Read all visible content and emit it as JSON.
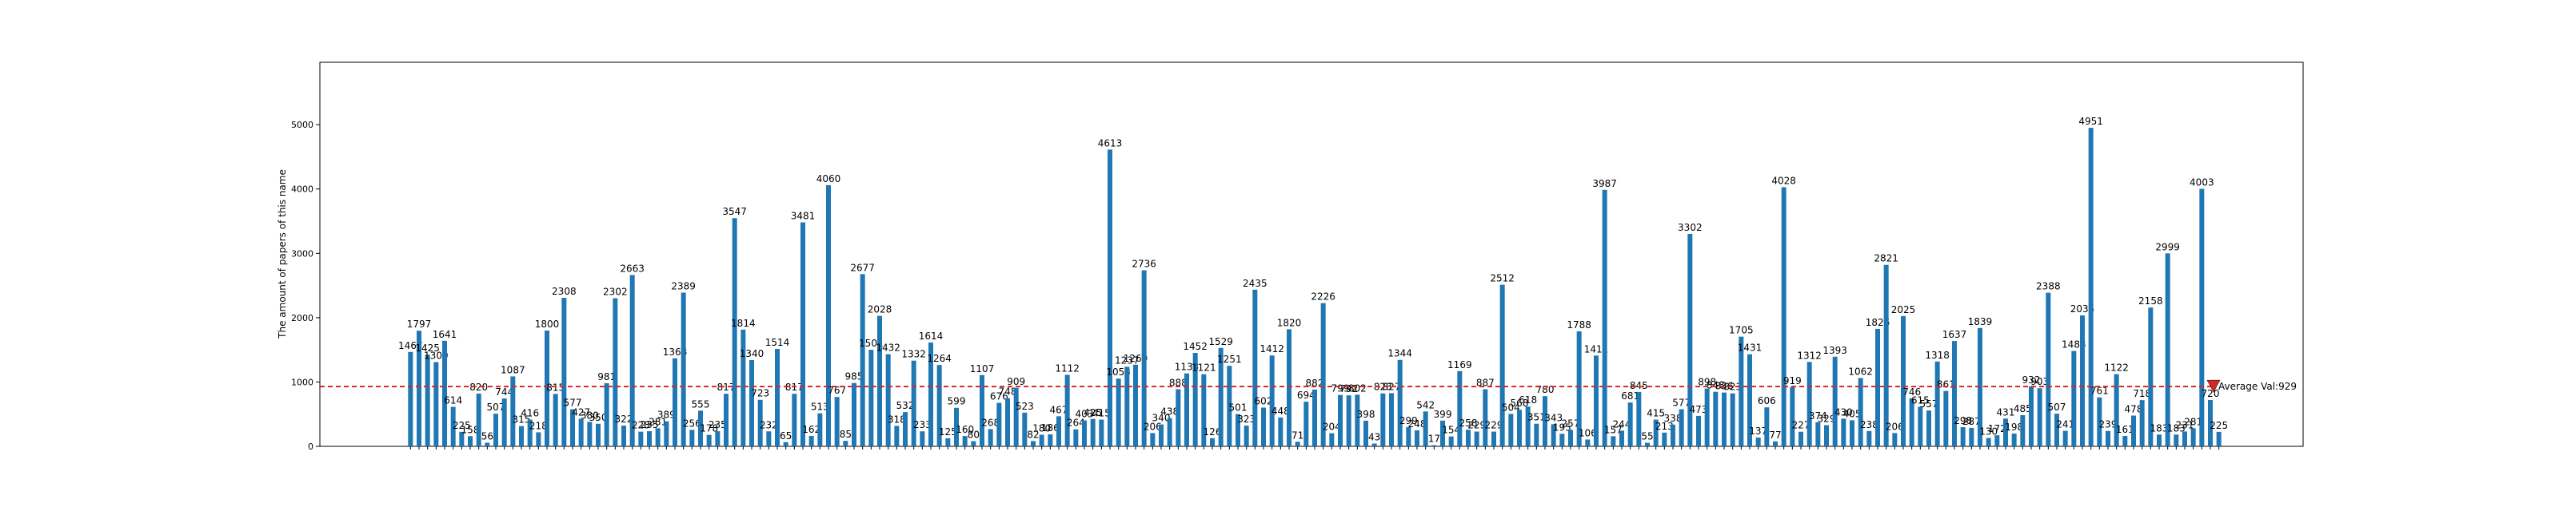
{
  "chart_data": {
    "type": "bar",
    "y_label": "The amount of papers of this name",
    "color": "#1f77b4",
    "ylim": [
      0,
      5970
    ],
    "yticks": [
      0,
      1000,
      2000,
      3000,
      4000,
      5000
    ],
    "annotation": {
      "text": "Average Val:929",
      "value": 929,
      "color": "#d62728"
    },
    "values": [
      1467,
      1797,
      1425,
      1309,
      1641,
      614,
      225,
      158,
      820,
      56,
      507,
      744,
      1087,
      315,
      416,
      218,
      1800,
      815,
      2308,
      577,
      427,
      380,
      350,
      981,
      2302,
      322,
      2663,
      228,
      235,
      281,
      389,
      1368,
      2389,
      256,
      555,
      178,
      235,
      817,
      3547,
      1814,
      1340,
      723,
      232,
      1514,
      65,
      817,
      3481,
      162,
      513,
      4060,
      767,
      85,
      985,
      2677,
      1501,
      2028,
      1432,
      318,
      532,
      1332,
      233,
      1614,
      1264,
      125,
      599,
      160,
      80,
      1107,
      268,
      676,
      748,
      909,
      523,
      82,
      180,
      186,
      467,
      1112,
      264,
      403,
      425,
      415,
      4613,
      1053,
      1237,
      1269,
      2736,
      206,
      340,
      438,
      888,
      1133,
      1452,
      1121,
      126,
      1529,
      1251,
      501,
      323,
      2435,
      602,
      1412,
      448,
      1820,
      71,
      694,
      882,
      2226,
      204,
      799,
      792,
      802,
      398,
      43,
      823,
      827,
      1344,
      299,
      248,
      542,
      17,
      399,
      154,
      1169,
      258,
      229,
      887,
      229,
      2512,
      504,
      568,
      618,
      351,
      780,
      343,
      195,
      257,
      1788,
      106,
      1411,
      3987,
      157,
      244,
      681,
      845,
      55,
      415,
      213,
      338,
      577,
      3302,
      473,
      898,
      848,
      836,
      823,
      1705,
      1431,
      137,
      606,
      77,
      4028,
      919,
      227,
      1312,
      374,
      329,
      1393,
      430,
      405,
      1062,
      238,
      1826,
      2821,
      206,
      2025,
      746,
      615,
      557,
      1318,
      861,
      1637,
      298,
      287,
      1839,
      130,
      172,
      431,
      198,
      485,
      932,
      903,
      2388,
      507,
      241,
      1483,
      2035,
      4951,
      761,
      239,
      1122,
      161,
      478,
      718,
      2158,
      183,
      2999,
      183,
      231,
      281,
      4003,
      720,
      225
    ],
    "categories": [
      null,
      null,
      null,
      null,
      null,
      null,
      null,
      null,
      null,
      null,
      null,
      null,
      null,
      null,
      null,
      null,
      null,
      null,
      null,
      null,
      null,
      null,
      null,
      null,
      null,
      null,
      null,
      null,
      null,
      null,
      null,
      null,
      null,
      null,
      null,
      null,
      null,
      null,
      null,
      null,
      null,
      null,
      null,
      null,
      null,
      null,
      null,
      null,
      null,
      null,
      null,
      null,
      null,
      null,
      null,
      null,
      null,
      null,
      null,
      null,
      null,
      null,
      null,
      null,
      null,
      null,
      null,
      null,
      null,
      null,
      null,
      null,
      null,
      null,
      null,
      null,
      null,
      null,
      null,
      null,
      null,
      null,
      null,
      null,
      null,
      null,
      null,
      null,
      null,
      null,
      null,
      null,
      null,
      null,
      null,
      null,
      null,
      null,
      null,
      null,
      null,
      null,
      null,
      null,
      null,
      null,
      null,
      null,
      null,
      null,
      null,
      null,
      null,
      null,
      null,
      null,
      null,
      null,
      null,
      null,
      null,
      null,
      null,
      null,
      null,
      null,
      null,
      null,
      null,
      null,
      null,
      null,
      null,
      null,
      null,
      null,
      null,
      null,
      null,
      null,
      null,
      null,
      null,
      null,
      null,
      null,
      null,
      null,
      null,
      null,
      null,
      null,
      null,
      null,
      null,
      null,
      null,
      null,
      null,
      null,
      null,
      null,
      null,
      null,
      null,
      null,
      null,
      null,
      null,
      null,
      null,
      null,
      null,
      null,
      null,
      null,
      null,
      null,
      null,
      null,
      null,
      null,
      null,
      null,
      null,
      null,
      null,
      null,
      null,
      null,
      null,
      null,
      null,
      null,
      null,
      null,
      null,
      null,
      null,
      null,
      null,
      null,
      null,
      null,
      null,
      null,
      null,
      null,
      null,
      null,
      null,
      null,
      null
    ]
  }
}
